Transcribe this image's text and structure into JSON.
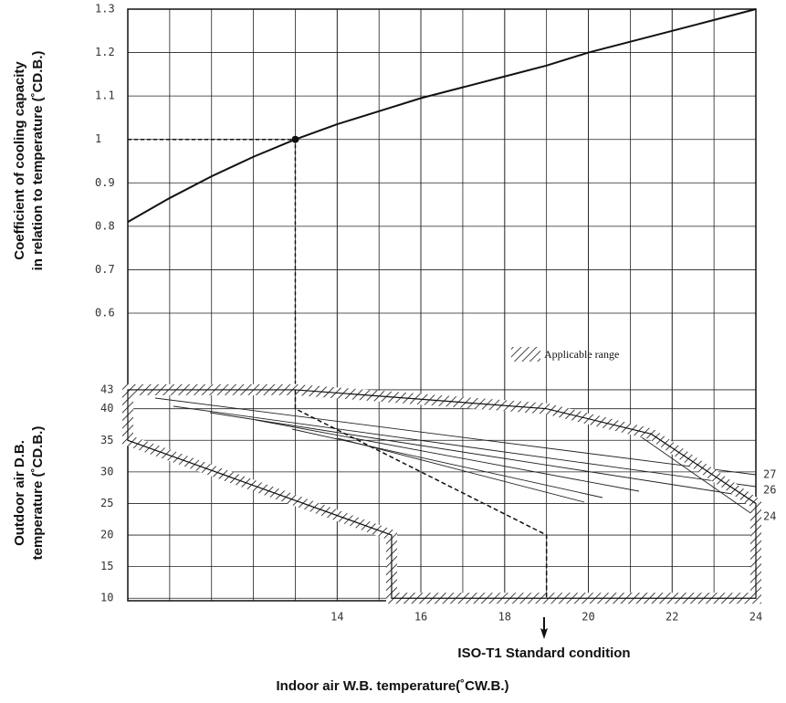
{
  "chart_data": [
    {
      "type": "line",
      "y_label": [
        "Coefficient of cooling  capacity",
        "in relation to temperature (˚CD.B.)"
      ],
      "x": [
        9,
        10,
        11,
        12,
        13,
        14,
        15,
        16,
        17,
        18,
        19,
        20,
        21,
        22,
        23,
        24
      ],
      "values": [
        0.81,
        0.865,
        0.915,
        0.96,
        1.0,
        1.035,
        1.065,
        1.095,
        1.12,
        1.145,
        1.17,
        1.2,
        1.225,
        1.25,
        1.275,
        1.3
      ],
      "color": "#111111",
      "xlim": [
        9,
        24
      ],
      "ylim": [
        0.6,
        1.3
      ],
      "yticks": [
        0.6,
        0.7,
        0.8,
        0.9,
        1.0,
        1.1,
        1.2,
        1.3
      ],
      "grid": true,
      "reference_point": {
        "x": 13,
        "y": 1.0
      }
    },
    {
      "type": "area",
      "y_label": [
        "Outdoor air D.B.",
        "temperature (˚CD.B.)"
      ],
      "x_label": "Indoor air W.B. temperature(˚CW.B.)",
      "xlim": [
        9,
        24
      ],
      "ylim": [
        9.6,
        44
      ],
      "xticks": [
        14,
        16,
        18,
        20,
        22,
        24
      ],
      "xgrid": [
        10,
        11,
        12,
        13,
        14,
        15,
        16,
        17,
        18,
        19,
        20,
        21,
        22,
        23
      ],
      "yticks": [
        10,
        15,
        20,
        25,
        30,
        35,
        40,
        43
      ],
      "grid": true,
      "region": {
        "name": "Applicable range",
        "x": [
          9,
          13,
          19,
          21.5,
          24,
          24,
          15.3,
          15.3,
          9
        ],
        "y": [
          43,
          43,
          40,
          36,
          25,
          10,
          10,
          20,
          35
        ]
      },
      "iso_path": {
        "label": "ISO-T1 Standard condition",
        "x": [
          13,
          13,
          19,
          19
        ],
        "y": [
          43,
          40,
          20,
          10
        ]
      },
      "line_labels": [
        "27",
        "26",
        "24"
      ]
    }
  ]
}
